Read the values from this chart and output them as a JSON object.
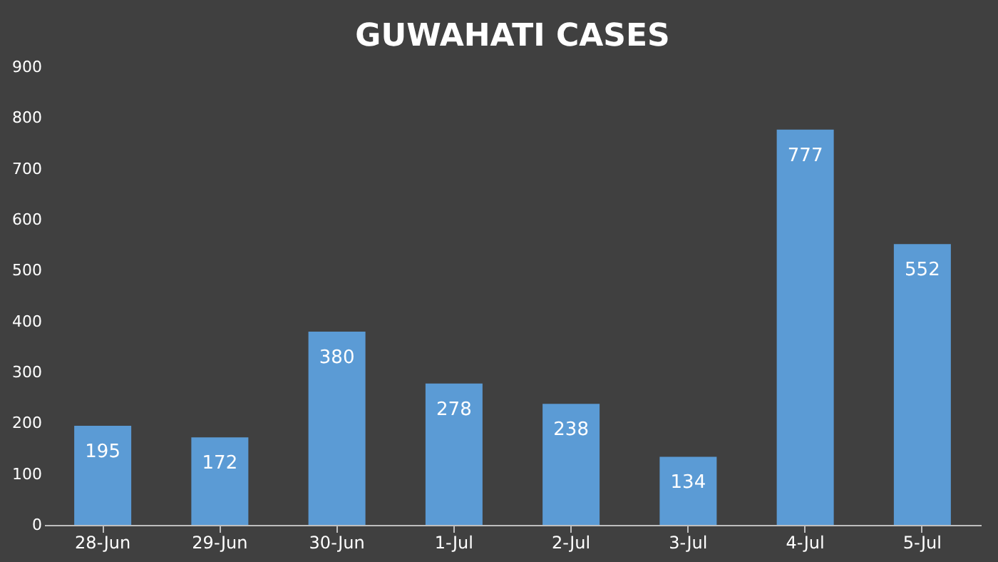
{
  "chart_data": {
    "type": "bar",
    "title": "GUWAHATI  CASES",
    "categories": [
      "28-Jun",
      "29-Jun",
      "30-Jun",
      "1-Jul",
      "2-Jul",
      "3-Jul",
      "4-Jul",
      "5-Jul"
    ],
    "values": [
      195,
      172,
      380,
      278,
      238,
      134,
      777,
      552
    ],
    "color": "#5b9bd5",
    "ylim": [
      0,
      900
    ],
    "yticks": [
      0,
      100,
      200,
      300,
      400,
      500,
      600,
      700,
      800,
      900
    ],
    "grid": false,
    "data_labels": true
  }
}
